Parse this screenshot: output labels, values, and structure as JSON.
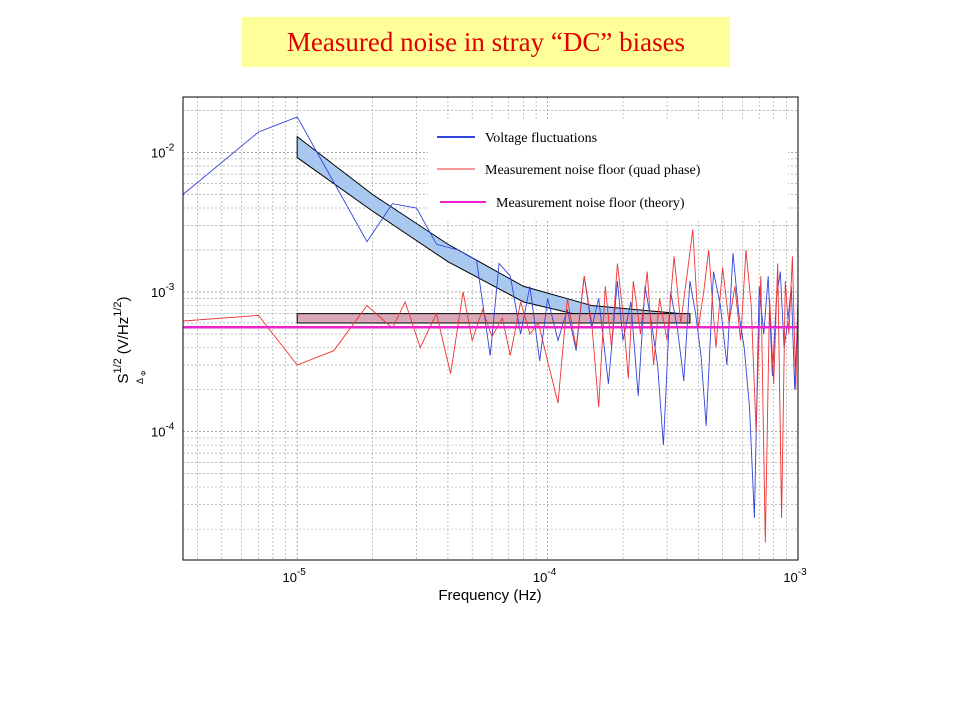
{
  "page": {
    "title": "Measured noise in stray “DC” biases"
  },
  "chart_data": {
    "type": "line",
    "xscale": "log",
    "yscale": "log",
    "xlim": [
      3.5e-06,
      0.001
    ],
    "ylim": [
      1.2e-05,
      0.025
    ],
    "grid": true,
    "legend_position": "top-right",
    "xlabel": "Frequency (Hz)",
    "ylabel": {
      "prefix": "S",
      "superscript": "1/2",
      "subscript": "Δ",
      "subsubscript": "Φ",
      "unit_open": "(V/Hz",
      "unit_sup": "1/2",
      "unit_close": ")"
    },
    "xticks": [
      {
        "value": 1e-05,
        "base": "10",
        "exp": "-5"
      },
      {
        "value": 0.0001,
        "base": "10",
        "exp": "-4"
      },
      {
        "value": 0.001,
        "base": "10",
        "exp": "-3"
      }
    ],
    "yticks": [
      {
        "value": 0.01,
        "base": "10",
        "exp": "-2"
      },
      {
        "value": 0.001,
        "base": "10",
        "exp": "-3"
      },
      {
        "value": 0.0001,
        "base": "10",
        "exp": "-4"
      }
    ],
    "series": [
      {
        "name": "Voltage fluctuations",
        "color": "#3344dd",
        "points": [
          [
            3.5e-06,
            0.005
          ],
          [
            7e-06,
            0.014
          ],
          [
            1e-05,
            0.018
          ],
          [
            1.9e-05,
            0.0023
          ],
          [
            2.4e-05,
            0.0043
          ],
          [
            3e-05,
            0.004
          ],
          [
            3.6e-05,
            0.0022
          ],
          [
            4.4e-05,
            0.002
          ],
          [
            5.2e-05,
            0.0017
          ],
          [
            5.9e-05,
            0.00035
          ],
          [
            6.4e-05,
            0.0016
          ],
          [
            7.1e-05,
            0.0013
          ],
          [
            7.8e-05,
            0.0005
          ],
          [
            8.5e-05,
            0.0011
          ],
          [
            9.3e-05,
            0.00032
          ],
          [
            0.0001,
            0.0009
          ],
          [
            0.00011,
            0.00045
          ],
          [
            0.00012,
            0.00075
          ],
          [
            0.00013,
            0.00038
          ],
          [
            0.00014,
            0.0013
          ],
          [
            0.00015,
            0.00055
          ],
          [
            0.00016,
            0.0009
          ],
          [
            0.000175,
            0.00022
          ],
          [
            0.00019,
            0.0012
          ],
          [
            0.0002,
            0.00045
          ],
          [
            0.000215,
            0.00085
          ],
          [
            0.00023,
            0.00018
          ],
          [
            0.000245,
            0.0011
          ],
          [
            0.00026,
            0.0006
          ],
          [
            0.000275,
            0.0003
          ],
          [
            0.00029,
            8e-05
          ],
          [
            0.00031,
            0.001
          ],
          [
            0.00033,
            0.00055
          ],
          [
            0.00035,
            0.00023
          ],
          [
            0.00037,
            0.0012
          ],
          [
            0.00039,
            0.0007
          ],
          [
            0.00041,
            0.00035
          ],
          [
            0.00043,
            0.00011
          ],
          [
            0.00046,
            0.0014
          ],
          [
            0.00049,
            0.0008
          ],
          [
            0.00052,
            0.0003
          ],
          [
            0.00055,
            0.0019
          ],
          [
            0.00058,
            0.0007
          ],
          [
            0.00061,
            0.0004
          ],
          [
            0.00064,
            0.00015
          ],
          [
            0.00067,
            2.4e-05
          ],
          [
            0.0007,
            0.0011
          ],
          [
            0.00073,
            0.0005
          ],
          [
            0.00076,
            0.0013
          ],
          [
            0.00079,
            0.00025
          ],
          [
            0.00082,
            0.0009
          ],
          [
            0.00085,
            0.0014
          ],
          [
            0.00088,
            0.0004
          ],
          [
            0.00091,
            0.0006
          ],
          [
            0.00094,
            0.0011
          ],
          [
            0.00097,
            0.0002
          ],
          [
            0.001,
            0.0008
          ]
        ]
      },
      {
        "name": "Measurement noise floor (quad phase)",
        "color": "#ee3333",
        "points": [
          [
            3.5e-06,
            0.00062
          ],
          [
            7e-06,
            0.00068
          ],
          [
            1e-05,
            0.0003
          ],
          [
            1.4e-05,
            0.00038
          ],
          [
            1.9e-05,
            0.0008
          ],
          [
            2.4e-05,
            0.00055
          ],
          [
            2.7e-05,
            0.00085
          ],
          [
            3.1e-05,
            0.0004
          ],
          [
            3.6e-05,
            0.0007
          ],
          [
            4.1e-05,
            0.00026
          ],
          [
            4.6e-05,
            0.001
          ],
          [
            5e-05,
            0.00045
          ],
          [
            5.5e-05,
            0.00075
          ],
          [
            6e-05,
            0.00048
          ],
          [
            6.6e-05,
            0.00065
          ],
          [
            7.1e-05,
            0.00035
          ],
          [
            7.8e-05,
            0.00085
          ],
          [
            8.5e-05,
            0.0005
          ],
          [
            9.2e-05,
            0.0006
          ],
          [
            0.0001,
            0.00032
          ],
          [
            0.00011,
            0.00016
          ],
          [
            0.00012,
            0.0009
          ],
          [
            0.00013,
            0.0004
          ],
          [
            0.00014,
            0.0013
          ],
          [
            0.00015,
            0.0006
          ],
          [
            0.00016,
            0.00015
          ],
          [
            0.00017,
            0.0011
          ],
          [
            0.00018,
            0.0004
          ],
          [
            0.00019,
            0.0016
          ],
          [
            0.0002,
            0.0007
          ],
          [
            0.00021,
            0.00024
          ],
          [
            0.00022,
            0.0012
          ],
          [
            0.000235,
            0.0005
          ],
          [
            0.00025,
            0.0014
          ],
          [
            0.000265,
            0.0003
          ],
          [
            0.00028,
            0.0009
          ],
          [
            0.0003,
            0.00045
          ],
          [
            0.00032,
            0.0018
          ],
          [
            0.00034,
            0.0006
          ],
          [
            0.00036,
            0.0013
          ],
          [
            0.00038,
            0.0028
          ],
          [
            0.0004,
            0.00055
          ],
          [
            0.00042,
            0.001
          ],
          [
            0.00044,
            0.002
          ],
          [
            0.00047,
            0.0004
          ],
          [
            0.0005,
            0.0015
          ],
          [
            0.00053,
            0.0006
          ],
          [
            0.00056,
            0.0011
          ],
          [
            0.00059,
            0.00045
          ],
          [
            0.00062,
            0.002
          ],
          [
            0.00065,
            0.0008
          ],
          [
            0.00068,
            0.0001
          ],
          [
            0.00071,
            0.0013
          ],
          [
            0.00074,
            1.6e-05
          ],
          [
            0.00077,
            0.0009
          ],
          [
            0.0008,
            0.00022
          ],
          [
            0.00083,
            0.0016
          ],
          [
            0.00086,
            2.4e-05
          ],
          [
            0.00089,
            0.0012
          ],
          [
            0.00092,
            0.0005
          ],
          [
            0.00095,
            0.0018
          ],
          [
            0.00098,
            0.0002
          ],
          [
            0.001,
            0.001
          ]
        ]
      },
      {
        "name": "Measurement noise floor (theory)",
        "color": "#ee22cc",
        "points": [
          [
            3.5e-06,
            0.00056
          ],
          [
            0.001,
            0.00056
          ]
        ]
      }
    ],
    "bands": [
      {
        "color": "#a8c8f0",
        "upper": [
          [
            1e-05,
            0.013
          ],
          [
            2e-05,
            0.005
          ],
          [
            4e-05,
            0.0022
          ],
          [
            8e-05,
            0.0011
          ],
          [
            0.00015,
            0.0008
          ],
          [
            0.00037,
            0.00069
          ]
        ],
        "lower": [
          [
            1e-05,
            0.0092
          ],
          [
            2e-05,
            0.0038
          ],
          [
            4e-05,
            0.00165
          ],
          [
            8e-05,
            0.00085
          ],
          [
            0.00015,
            0.00065
          ],
          [
            0.00037,
            0.00062
          ]
        ]
      },
      {
        "color": "#d8a8b8",
        "upper": [
          [
            1e-05,
            0.0007
          ],
          [
            0.00037,
            0.0007
          ]
        ],
        "lower": [
          [
            1e-05,
            0.0006
          ],
          [
            0.00037,
            0.0006
          ]
        ]
      }
    ]
  }
}
